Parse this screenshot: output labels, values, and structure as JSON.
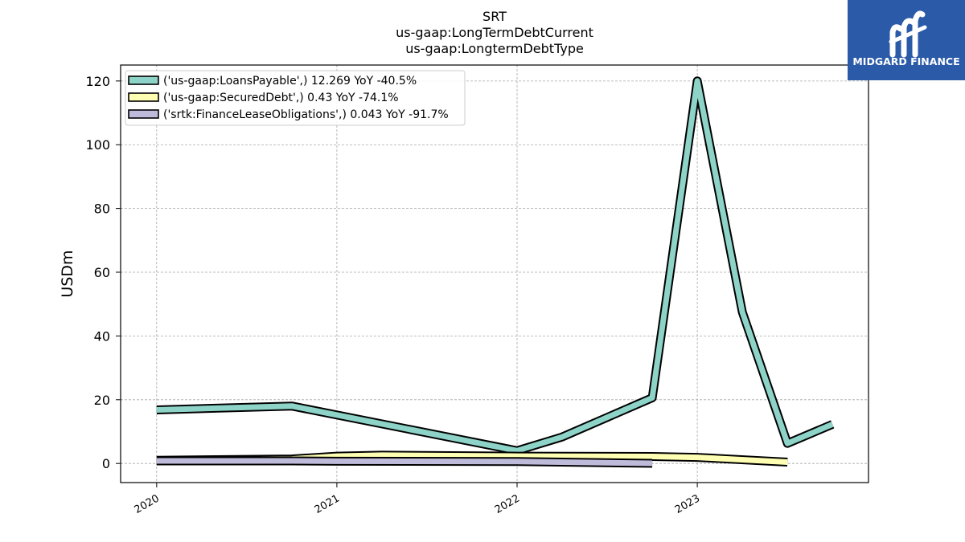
{
  "chart_data": {
    "type": "line",
    "title_lines": [
      "SRT",
      "us-gaap:LongTermDebtCurrent",
      "us-gaap:LongtermDebtType"
    ],
    "xlabel": "",
    "ylabel": "USDm",
    "xlim": [
      2019.8,
      2023.95
    ],
    "ylim": [
      -6,
      125
    ],
    "x_ticks": [
      2020,
      2021,
      2022,
      2023
    ],
    "x_tick_labels": [
      "2020",
      "2021",
      "2022",
      "2023"
    ],
    "y_ticks": [
      0,
      20,
      40,
      60,
      80,
      100,
      120
    ],
    "y_tick_labels": [
      "0",
      "20",
      "40",
      "60",
      "80",
      "100",
      "120"
    ],
    "grid": true,
    "legend_position": "top-left",
    "series": [
      {
        "name": "('us-gaap:LoansPayable',) 12.269 YoY -40.5%",
        "color": "#8dd3c7",
        "x": [
          2020.0,
          2020.75,
          2022.0,
          2022.25,
          2022.75,
          2023.0,
          2023.25,
          2023.5,
          2023.75
        ],
        "y": [
          16.8,
          18.0,
          4.0,
          8.3,
          20.6,
          120.0,
          47.5,
          6.3,
          12.3
        ]
      },
      {
        "name": "('us-gaap:SecuredDebt',) 0.43 YoY -74.1%",
        "color": "#ffffb3",
        "x": [
          2020.0,
          2020.75,
          2021.0,
          2021.25,
          2022.0,
          2022.75,
          2023.0,
          2023.5
        ],
        "y": [
          1.0,
          1.4,
          2.3,
          2.6,
          2.3,
          2.2,
          1.9,
          0.43
        ]
      },
      {
        "name": "('srtk:FinanceLeaseObligations',) 0.043 YoY -91.7%",
        "color": "#bebada",
        "x": [
          2020.0,
          2020.75,
          2021.0,
          2022.0,
          2022.75
        ],
        "y": [
          0.8,
          0.8,
          0.7,
          0.6,
          0.043
        ]
      }
    ]
  },
  "brand": {
    "name": "MIDGARD FINANCE",
    "logo_icon": "midgard-finance-logo-icon",
    "background_color": "#2a5aa8"
  }
}
